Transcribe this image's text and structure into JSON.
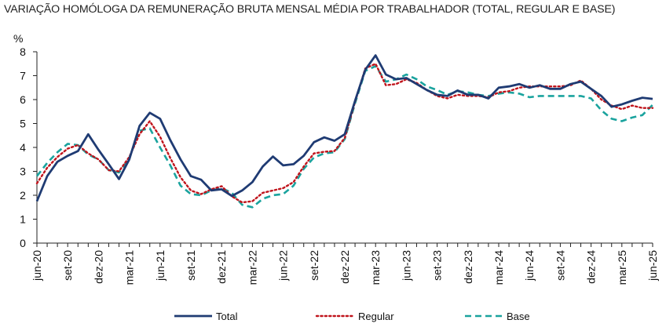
{
  "chart_data": {
    "type": "line",
    "title": "VARIAÇÃO HOMÓLOGA DA REMUNERAÇÃO BRUTA MENSAL MÉDIA POR TRABALHADOR (TOTAL, REGULAR E BASE)",
    "ylabel": "%",
    "xlabel": "",
    "ylim": [
      0,
      8
    ],
    "yticks": [
      "0",
      "1",
      "2",
      "3",
      "4",
      "5",
      "6",
      "7",
      "8"
    ],
    "grid": false,
    "legend_position": "bottom",
    "x_tick_labels": [
      "jun-20",
      "set-20",
      "dez-20",
      "mar-21",
      "jun-21",
      "set-21",
      "dez-21",
      "mar-22",
      "jun-22",
      "set-22",
      "dez-22",
      "mar-23",
      "jun-23",
      "set-23",
      "dez-23",
      "mar-24",
      "jun-24",
      "set-24",
      "dez-24",
      "mar-25",
      "jun-25"
    ],
    "x": [
      "jun-20",
      "jul-20",
      "ago-20",
      "set-20",
      "out-20",
      "nov-20",
      "dez-20",
      "jan-21",
      "fev-21",
      "mar-21",
      "abr-21",
      "mai-21",
      "jun-21",
      "jul-21",
      "ago-21",
      "set-21",
      "out-21",
      "nov-21",
      "dez-21",
      "jan-22",
      "fev-22",
      "mar-22",
      "abr-22",
      "mai-22",
      "jun-22",
      "jul-22",
      "ago-22",
      "set-22",
      "out-22",
      "nov-22",
      "dez-22",
      "jan-23",
      "fev-23",
      "mar-23",
      "abr-23",
      "mai-23",
      "jun-23",
      "jul-23",
      "ago-23",
      "set-23",
      "out-23",
      "nov-23",
      "dez-23",
      "jan-24",
      "fev-24",
      "mar-24",
      "abr-24",
      "mai-24",
      "jun-24",
      "jul-24",
      "ago-24",
      "set-24",
      "out-24",
      "nov-24",
      "dez-24",
      "jan-25",
      "fev-25",
      "mar-25",
      "abr-25",
      "mai-25",
      "jun-25"
    ],
    "series": [
      {
        "name": "Total",
        "color": "#1f3b73",
        "style": "solid",
        "values": [
          1.75,
          2.8,
          3.4,
          3.65,
          3.85,
          4.55,
          3.9,
          3.3,
          2.68,
          3.5,
          4.9,
          5.45,
          5.2,
          4.3,
          3.5,
          2.8,
          2.65,
          2.2,
          2.25,
          1.97,
          2.2,
          2.55,
          3.2,
          3.62,
          3.25,
          3.3,
          3.65,
          4.22,
          4.42,
          4.28,
          4.55,
          5.95,
          7.25,
          7.85,
          7.05,
          6.85,
          6.9,
          6.65,
          6.4,
          6.2,
          6.15,
          6.38,
          6.2,
          6.2,
          6.05,
          6.5,
          6.55,
          6.65,
          6.5,
          6.6,
          6.45,
          6.45,
          6.65,
          6.75,
          6.45,
          6.15,
          5.7,
          5.8,
          5.95,
          6.08,
          6.03
        ]
      },
      {
        "name": "Regular",
        "color": "#c0141c",
        "style": "dotted",
        "values": [
          2.5,
          3.15,
          3.6,
          3.95,
          4.1,
          3.75,
          3.5,
          3.05,
          3.0,
          3.6,
          4.55,
          5.1,
          4.45,
          3.55,
          2.75,
          2.2,
          2.05,
          2.25,
          2.38,
          1.95,
          1.7,
          1.75,
          2.1,
          2.2,
          2.3,
          2.55,
          3.2,
          3.75,
          3.82,
          3.85,
          4.4,
          5.9,
          7.3,
          7.5,
          6.6,
          6.65,
          6.85,
          6.7,
          6.4,
          6.15,
          6.05,
          6.2,
          6.15,
          6.15,
          6.1,
          6.3,
          6.35,
          6.5,
          6.55,
          6.55,
          6.55,
          6.55,
          6.6,
          6.8,
          6.45,
          6.0,
          5.75,
          5.6,
          5.75,
          5.65,
          5.65
        ]
      },
      {
        "name": "Base",
        "color": "#1aa39e",
        "style": "dashed",
        "values": [
          2.8,
          3.35,
          3.8,
          4.15,
          4.1,
          3.7,
          3.5,
          3.05,
          2.95,
          3.55,
          4.7,
          4.8,
          4.0,
          3.25,
          2.4,
          2.05,
          2.0,
          2.2,
          2.3,
          2.1,
          1.6,
          1.5,
          1.85,
          2.0,
          2.05,
          2.4,
          3.1,
          3.58,
          3.75,
          3.8,
          4.35,
          5.85,
          7.2,
          7.4,
          6.75,
          6.85,
          7.05,
          6.85,
          6.55,
          6.4,
          6.2,
          6.35,
          6.3,
          6.2,
          6.15,
          6.25,
          6.3,
          6.25,
          6.1,
          6.15,
          6.15,
          6.15,
          6.15,
          6.15,
          6.05,
          5.55,
          5.2,
          5.1,
          5.25,
          5.35,
          5.78
        ]
      }
    ]
  }
}
